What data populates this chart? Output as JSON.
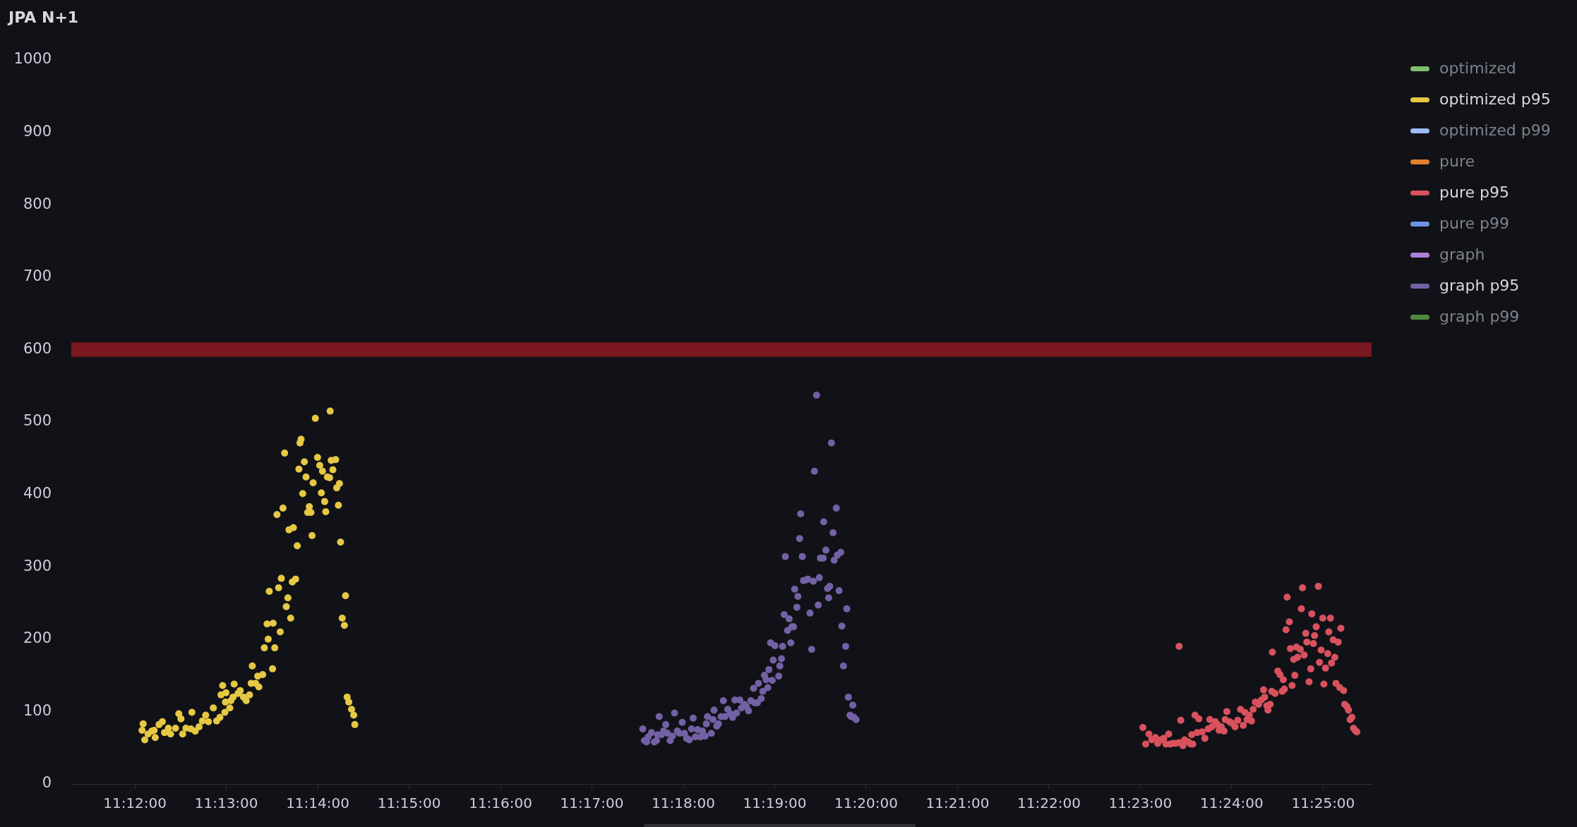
{
  "chart_data": {
    "type": "scatter",
    "title": "JPA N+1",
    "xlim": [
      11.1884,
      11.4255
    ],
    "ylim": [
      0,
      1000
    ],
    "xticks": [
      {
        "value": 11.2,
        "label": "11:12:00"
      },
      {
        "value": 11.21667,
        "label": "11:13:00"
      },
      {
        "value": 11.23333,
        "label": "11:14:00"
      },
      {
        "value": 11.25,
        "label": "11:15:00"
      },
      {
        "value": 11.26667,
        "label": "11:16:00"
      },
      {
        "value": 11.28333,
        "label": "11:17:00"
      },
      {
        "value": 11.3,
        "label": "11:18:00"
      },
      {
        "value": 11.31667,
        "label": "11:19:00"
      },
      {
        "value": 11.33333,
        "label": "11:20:00"
      },
      {
        "value": 11.35,
        "label": "11:21:00"
      },
      {
        "value": 11.36667,
        "label": "11:22:00"
      },
      {
        "value": 11.38333,
        "label": "11:23:00"
      },
      {
        "value": 11.4,
        "label": "11:24:00"
      },
      {
        "value": 11.41667,
        "label": "11:25:00"
      }
    ],
    "yticks": [
      0,
      100,
      200,
      300,
      400,
      500,
      600,
      700,
      800,
      900,
      1000
    ],
    "legend": "right",
    "marker": "circle",
    "bands": [
      {
        "axis": "y",
        "from": 590,
        "to": 610,
        "color": "#7a1720"
      }
    ],
    "series": [
      {
        "name": "optimized",
        "color": "#7fbf6e"
      },
      {
        "name": "optimized p95",
        "color": "#e5c843",
        "x": [
          11.2015,
          11.2013,
          11.2018,
          11.2024,
          11.2031,
          11.2037,
          11.2035,
          11.2044,
          11.205,
          11.2054,
          11.2061,
          11.2065,
          11.2074,
          11.208,
          11.2084,
          11.2087,
          11.2093,
          11.2102,
          11.2104,
          11.211,
          11.2117,
          11.2123,
          11.2129,
          11.2134,
          11.2143,
          11.2149,
          11.2155,
          11.2157,
          11.216,
          11.2164,
          11.2166,
          11.2165,
          11.2173,
          11.2175,
          11.2179,
          11.2181,
          11.2188,
          11.2192,
          11.2198,
          11.2203,
          11.2209,
          11.2212,
          11.2214,
          11.222,
          11.2224,
          11.2226,
          11.2233,
          11.2236,
          11.2243,
          11.2241,
          11.2245,
          11.2252,
          11.2251,
          11.2255,
          11.2262,
          11.2265,
          11.2267,
          11.2273,
          11.2276,
          11.2279,
          11.2284,
          11.2287,
          11.2293,
          11.2281,
          11.2289,
          11.2259,
          11.227,
          11.2296,
          11.2299,
          11.2301,
          11.2303,
          11.2306,
          11.2309,
          11.2312,
          11.2318,
          11.2315,
          11.2321,
          11.2323,
          11.2325,
          11.2329,
          11.2333,
          11.2337,
          11.234,
          11.2342,
          11.2346,
          11.2348,
          11.2351,
          11.2355,
          11.2356,
          11.2358,
          11.2361,
          11.2366,
          11.2368,
          11.2371,
          11.2373,
          11.2375,
          11.2378,
          11.2382,
          11.2384,
          11.2387,
          11.239,
          11.2395,
          11.2399,
          11.2401
        ],
        "values": [
          83,
          74,
          61,
          69,
          73,
          64,
          74,
          82,
          86,
          71,
          77,
          69,
          77,
          97,
          90,
          69,
          77,
          76,
          99,
          73,
          79,
          87,
          95,
          86,
          105,
          87,
          92,
          123,
          136,
          99,
          126,
          113,
          105,
          115,
          120,
          138,
          125,
          129,
          120,
          115,
          123,
          139,
          163,
          139,
          149,
          134,
          151,
          188,
          200,
          221,
          266,
          222,
          159,
          188,
          271,
          210,
          284,
          457,
          245,
          257,
          229,
          279,
          283,
          351,
          354,
          372,
          381,
          329,
          435,
          471,
          476,
          401,
          445,
          424,
          383,
          375,
          375,
          343,
          416,
          505,
          451,
          440,
          402,
          432,
          390,
          376,
          424,
          423,
          515,
          447,
          434,
          448,
          409,
          385,
          415,
          334,
          229,
          219,
          260,
          120,
          113,
          103,
          95,
          82
        ]
      },
      {
        "name": "optimized p99",
        "color": "#9cbcf7"
      },
      {
        "name": "pure",
        "color": "#e47f32"
      },
      {
        "name": "pure p95",
        "color": "#d8525e",
        "x": [
          11.3838,
          11.3843,
          11.3849,
          11.3854,
          11.3861,
          11.3865,
          11.3871,
          11.3876,
          11.388,
          11.3885,
          11.3888,
          11.3893,
          11.3898,
          11.3904,
          11.3907,
          11.3904,
          11.3911,
          11.3914,
          11.3921,
          11.3925,
          11.3927,
          11.3929,
          11.3933,
          11.3937,
          11.394,
          11.3946,
          11.3951,
          11.3957,
          11.396,
          11.3964,
          11.397,
          11.3974,
          11.3977,
          11.3981,
          11.3986,
          11.3988,
          11.3991,
          11.3996,
          11.4,
          11.4006,
          11.4011,
          11.4016,
          11.4021,
          11.4024,
          11.4028,
          11.4032,
          11.4036,
          11.4039,
          11.4043,
          11.4049,
          11.4054,
          11.4058,
          11.406,
          11.4064,
          11.4066,
          11.407,
          11.4073,
          11.4074,
          11.4079,
          11.4084,
          11.4088,
          11.4092,
          11.4094,
          11.4096,
          11.4099,
          11.4101,
          11.4105,
          11.4107,
          11.411,
          11.4113,
          11.4115,
          11.4118,
          11.412,
          11.4125,
          11.4127,
          11.4129,
          11.4132,
          11.4135,
          11.4137,
          11.4141,
          11.4144,
          11.4146,
          11.4149,
          11.4151,
          11.4154,
          11.4158,
          11.416,
          11.4163,
          11.4166,
          11.4168,
          11.4171,
          11.4175,
          11.4177,
          11.418,
          11.4182,
          11.4185,
          11.4188,
          11.419,
          11.4194,
          11.4197,
          11.4199,
          11.4204,
          11.4206,
          11.421,
          11.4213,
          11.4216,
          11.4219,
          11.4222,
          11.4225,
          11.4228
        ],
        "values": [
          78,
          55,
          69,
          61,
          64,
          56,
          61,
          63,
          55,
          69,
          55,
          56,
          56,
          57,
          88,
          190,
          53,
          61,
          58,
          55,
          68,
          55,
          95,
          71,
          90,
          72,
          63,
          76,
          89,
          79,
          86,
          82,
          74,
          79,
          73,
          89,
          100,
          86,
          84,
          79,
          88,
          103,
          81,
          99,
          89,
          95,
          87,
          103,
          113,
          110,
          116,
          130,
          120,
          108,
          102,
          110,
          128,
          182,
          125,
          156,
          151,
          128,
          144,
          131,
          213,
          258,
          224,
          187,
          136,
          172,
          150,
          189,
          175,
          186,
          242,
          271,
          178,
          208,
          196,
          141,
          159,
          235,
          194,
          205,
          217,
          273,
          168,
          185,
          229,
          138,
          160,
          180,
          210,
          229,
          167,
          199,
          175,
          139,
          196,
          133,
          215,
          129,
          110,
          107,
          102,
          89,
          92,
          77,
          74,
          72
        ]
      },
      {
        "name": "pure p99",
        "color": "#6b94e8"
      },
      {
        "name": "graph",
        "color": "#ae7fd6"
      },
      {
        "name": "graph p95",
        "color": "#7360a5",
        "x": [
          11.2926,
          11.2929,
          11.2933,
          11.2936,
          11.2942,
          11.2947,
          11.2951,
          11.2953,
          11.2956,
          11.296,
          11.2964,
          11.2968,
          11.2971,
          11.2976,
          11.298,
          11.2984,
          11.2989,
          11.2993,
          11.2998,
          11.3002,
          11.3006,
          11.3011,
          11.3015,
          11.3018,
          11.3022,
          11.3026,
          11.3031,
          11.3035,
          11.304,
          11.3042,
          11.3044,
          11.3051,
          11.3054,
          11.3056,
          11.3061,
          11.3064,
          11.3069,
          11.3073,
          11.3076,
          11.3081,
          11.3086,
          11.309,
          11.3094,
          11.3097,
          11.3103,
          11.3106,
          11.3111,
          11.3115,
          11.3119,
          11.3123,
          11.3128,
          11.313,
          11.3135,
          11.3137,
          11.3142,
          11.3145,
          11.3148,
          11.3151,
          11.3154,
          11.3156,
          11.3162,
          11.3164,
          11.3159,
          11.3167,
          11.3174,
          11.3176,
          11.3179,
          11.3181,
          11.3184,
          11.3186,
          11.319,
          11.3193,
          11.3196,
          11.3198,
          11.3201,
          11.3203,
          11.3207,
          11.3209,
          11.3212,
          11.3214,
          11.3217,
          11.3219,
          11.3224,
          11.3227,
          11.3231,
          11.3234,
          11.3237,
          11.3239,
          11.3243,
          11.3246,
          11.3248,
          11.325,
          11.3255,
          11.3256,
          11.326,
          11.3263,
          11.3265,
          11.3267,
          11.327,
          11.3273,
          11.3275,
          11.3279,
          11.3281,
          11.3284,
          11.3287,
          11.3289,
          11.3292,
          11.3296,
          11.3298,
          11.3301,
          11.3304,
          11.3306,
          11.3309,
          11.3311,
          11.3315
        ],
        "values": [
          76,
          60,
          58,
          65,
          71,
          58,
          60,
          68,
          93,
          68,
          73,
          82,
          70,
          60,
          66,
          98,
          73,
          70,
          85,
          70,
          63,
          61,
          76,
          91,
          65,
          75,
          65,
          73,
          66,
          83,
          93,
          70,
          89,
          102,
          80,
          83,
          93,
          115,
          93,
          103,
          97,
          92,
          116,
          98,
          116,
          105,
          110,
          107,
          101,
          115,
          132,
          112,
          112,
          139,
          118,
          128,
          150,
          144,
          133,
          158,
          143,
          171,
          195,
          191,
          149,
          163,
          173,
          190,
          234,
          314,
          212,
          228,
          195,
          217,
          217,
          269,
          244,
          259,
          339,
          373,
          314,
          281,
          282,
          283,
          236,
          186,
          280,
          432,
          537,
          247,
          285,
          312,
          312,
          362,
          323,
          270,
          257,
          273,
          471,
          347,
          309,
          381,
          316,
          267,
          320,
          218,
          163,
          190,
          242,
          120,
          95,
          93,
          109,
          92,
          89
        ]
      },
      {
        "name": "graph p99",
        "color": "#4e8a3b"
      }
    ]
  }
}
